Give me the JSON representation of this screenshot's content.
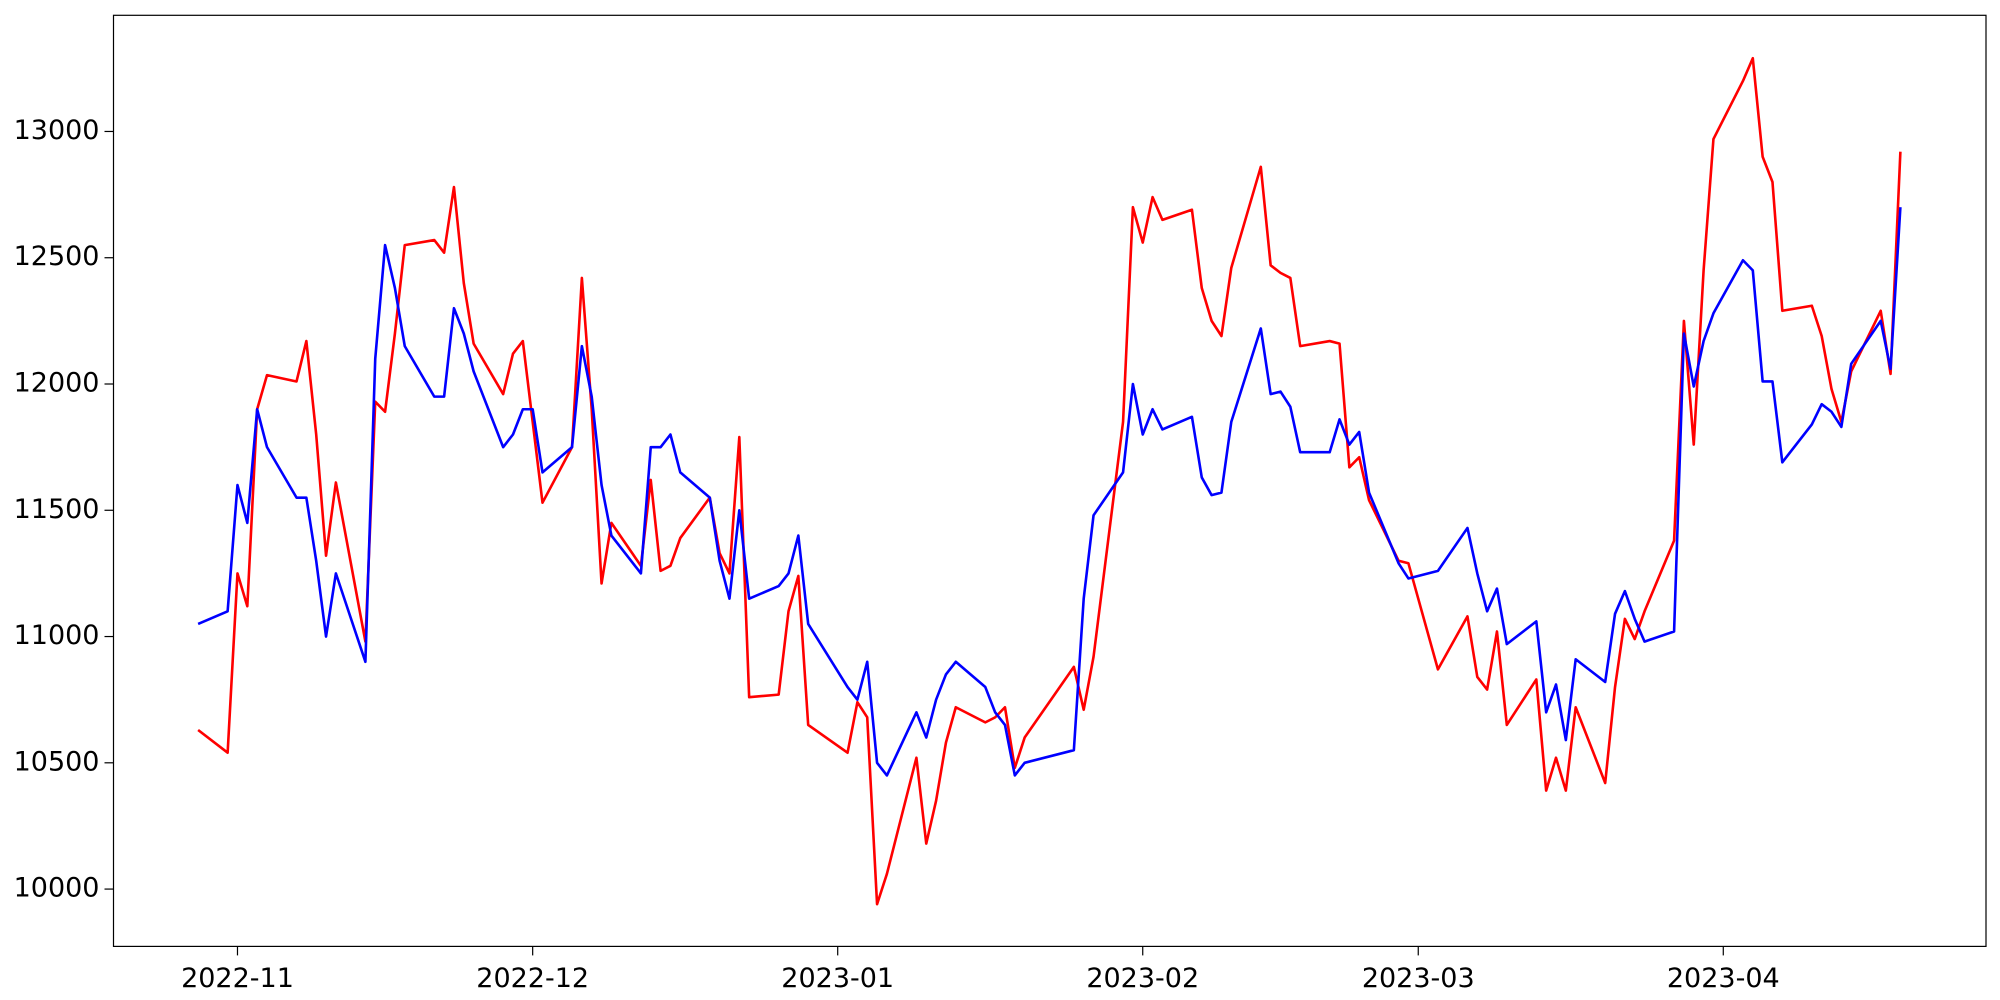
{
  "chart_data": {
    "type": "line",
    "x": [
      19293,
      19296,
      19297,
      19298,
      19299,
      19300,
      19303,
      19304,
      19305,
      19306,
      19307,
      19310,
      19311,
      19312,
      19313,
      19314,
      19317,
      19318,
      19319,
      19320,
      19321,
      19324,
      19325,
      19326,
      19327,
      19328,
      19331,
      19332,
      19333,
      19334,
      19335,
      19338,
      19339,
      19340,
      19341,
      19342,
      19345,
      19346,
      19347,
      19348,
      19349,
      19352,
      19353,
      19354,
      19355,
      19359,
      19360,
      19361,
      19362,
      19363,
      19366,
      19367,
      19368,
      19369,
      19370,
      19373,
      19374,
      19375,
      19376,
      19377,
      19382,
      19383,
      19384,
      19387,
      19388,
      19389,
      19390,
      19391,
      19394,
      19395,
      19396,
      19397,
      19398,
      19401,
      19402,
      19403,
      19404,
      19405,
      19408,
      19409,
      19410,
      19411,
      19412,
      19415,
      19416,
      19419,
      19422,
      19423,
      19424,
      19425,
      19426,
      19429,
      19430,
      19431,
      19432,
      19433,
      19436,
      19437,
      19438,
      19439,
      19440,
      19443,
      19444,
      19445,
      19446,
      19447,
      19450,
      19451,
      19452,
      19453,
      19454,
      19457,
      19458,
      19459,
      19460,
      19461,
      19464,
      19465,
      19466
    ],
    "series": [
      {
        "color": "#ff0000",
        "values": [
          10630,
          10540,
          11250,
          11120,
          11900,
          12035,
          12010,
          12170,
          11800,
          11320,
          11610,
          10980,
          11930,
          11890,
          12200,
          12550,
          12570,
          12520,
          12780,
          12400,
          12160,
          11960,
          12120,
          12170,
          11850,
          11530,
          11750,
          12420,
          11900,
          11210,
          11450,
          11280,
          11620,
          11260,
          11280,
          11390,
          11550,
          11330,
          11250,
          11790,
          10760,
          10770,
          11100,
          11240,
          10650,
          10540,
          10740,
          10680,
          9940,
          10060,
          10520,
          10180,
          10350,
          10580,
          10720,
          10660,
          10680,
          10720,
          10480,
          10600,
          10880,
          10710,
          10920,
          11850,
          12700,
          12560,
          12740,
          12650,
          12690,
          12380,
          12250,
          12190,
          12460,
          12860,
          12470,
          12440,
          12420,
          12150,
          12170,
          12160,
          11670,
          11710,
          11540,
          11300,
          11290,
          10870,
          11080,
          10840,
          10790,
          11020,
          10650,
          10830,
          10390,
          10520,
          10390,
          10720,
          10420,
          10800,
          11070,
          10990,
          11100,
          11380,
          12250,
          11760,
          12450,
          12970,
          13200,
          13290,
          12900,
          12800,
          12290,
          12310,
          12190,
          11980,
          11850,
          12050,
          12290,
          12040,
          12920
        ]
      },
      {
        "color": "#0000ff",
        "values": [
          11050,
          11100,
          11600,
          11450,
          11900,
          11750,
          11550,
          11550,
          11300,
          11000,
          11250,
          10900,
          12100,
          12550,
          12380,
          12150,
          11950,
          11950,
          12300,
          12200,
          12050,
          11750,
          11800,
          11900,
          11900,
          11650,
          11750,
          12150,
          11950,
          11600,
          11400,
          11250,
          11750,
          11750,
          11800,
          11650,
          11550,
          11300,
          11150,
          11500,
          11150,
          11200,
          11250,
          11400,
          11050,
          10800,
          10750,
          10900,
          10500,
          10450,
          10700,
          10600,
          10750,
          10850,
          10900,
          10800,
          10700,
          10650,
          10450,
          10500,
          10550,
          11150,
          11480,
          11650,
          12000,
          11800,
          11900,
          11820,
          11870,
          11630,
          11560,
          11570,
          11850,
          12220,
          11960,
          11970,
          11910,
          11730,
          11730,
          11860,
          11760,
          11810,
          11570,
          11290,
          11230,
          11260,
          11430,
          11250,
          11100,
          11190,
          10970,
          11060,
          10700,
          10810,
          10590,
          10910,
          10820,
          11090,
          11180,
          11070,
          10980,
          11020,
          12200,
          11990,
          12170,
          12280,
          12490,
          12450,
          12010,
          12010,
          11690,
          11840,
          11920,
          11890,
          11830,
          12080,
          12250,
          12060,
          12700
        ]
      }
    ],
    "xlim": [
      19284.4,
      19474.7
    ],
    "xticks": [
      {
        "value": 19297,
        "label": "2022-11"
      },
      {
        "value": 19327,
        "label": "2022-12"
      },
      {
        "value": 19358,
        "label": "2023-01"
      },
      {
        "value": 19389,
        "label": "2023-02"
      },
      {
        "value": 19417,
        "label": "2023-03"
      },
      {
        "value": 19448,
        "label": "2023-04"
      }
    ],
    "ylim": [
      9773,
      13460
    ],
    "yticks": [
      10000,
      10500,
      11000,
      11500,
      12000,
      12500,
      13000
    ]
  }
}
